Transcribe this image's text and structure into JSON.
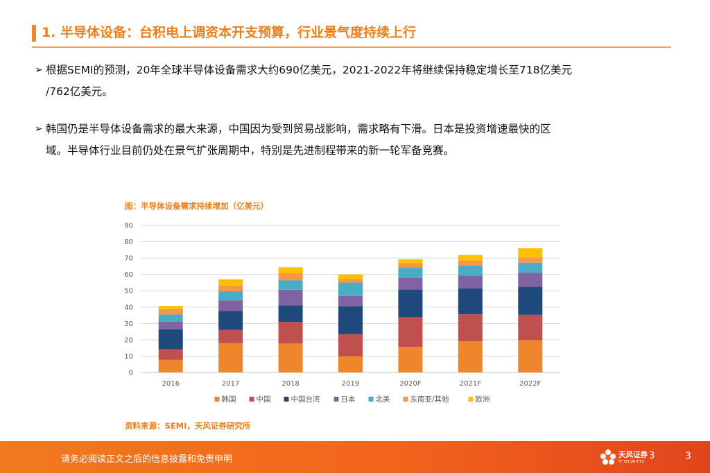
{
  "header": {
    "title": "1. 半导体设备：台积电上调资本开支预算，行业景气度持续上行"
  },
  "bullets": [
    {
      "arrow": "➢",
      "line1": "根据SEMI的预测，20年全球半导体设备需求大约690亿美元，2021-2022年将继续保持稳定增长至718亿美元",
      "line2": "/762亿美元。"
    },
    {
      "arrow": "➢",
      "line1": "韩国仍是半导体设备需求的最大来源，中国因为受到贸易战影响，需求略有下滑。日本是投资增速最快的区",
      "line2": "域。半导体行业目前仍处在景气扩张周期中，特别是先进制程带来的新一轮军备竞赛。"
    }
  ],
  "figure": {
    "caption": "图：半导体设备需求持续增加（亿美元）",
    "source": "资料来源：SEMI，天风证券研究所"
  },
  "chart_data": {
    "type": "bar",
    "stacked": true,
    "title": "图：半导体设备需求持续增加（亿美元）",
    "categories": [
      "2016",
      "2017",
      "2018",
      "2019",
      "2020F",
      "2021F",
      "2022F"
    ],
    "ylim": [
      0,
      90
    ],
    "yticks": [
      0,
      10,
      20,
      30,
      40,
      50,
      60,
      70,
      80,
      90
    ],
    "grid": true,
    "legend_position": "bottom",
    "series": [
      {
        "name": "韩国",
        "color": "#f0862b",
        "values": [
          7.7,
          17.9,
          17.7,
          9.9,
          15.7,
          19.0,
          19.8
        ]
      },
      {
        "name": "中国",
        "color": "#c0504d",
        "values": [
          6.5,
          8.2,
          13.2,
          13.5,
          18.1,
          16.6,
          15.5
        ]
      },
      {
        "name": "中国台湾",
        "color": "#1f497d",
        "values": [
          12.2,
          11.5,
          10.2,
          17.1,
          16.9,
          15.9,
          17.1
        ]
      },
      {
        "name": "日本",
        "color": "#8064a2",
        "values": [
          4.6,
          6.5,
          9.5,
          6.3,
          7.2,
          7.7,
          8.6
        ]
      },
      {
        "name": "北美",
        "color": "#4bacc6",
        "values": [
          4.5,
          5.6,
          5.8,
          8.2,
          6.2,
          6.3,
          6.2
        ]
      },
      {
        "name": "东南亚/其他",
        "color": "#f79646",
        "values": [
          3.2,
          3.5,
          4.3,
          2.3,
          2.8,
          3.0,
          3.2
        ]
      },
      {
        "name": "欧洲",
        "color": "#ffc000",
        "values": [
          2.0,
          3.8,
          3.7,
          2.7,
          2.4,
          3.4,
          5.6
        ]
      }
    ]
  },
  "footer": {
    "disclaimer": "请务必阅读正文之后的信息披露和免责申明",
    "logo_name": "天风证券",
    "logo_sub": "TF SECURITIES",
    "logo_num": "3",
    "page": "3"
  }
}
